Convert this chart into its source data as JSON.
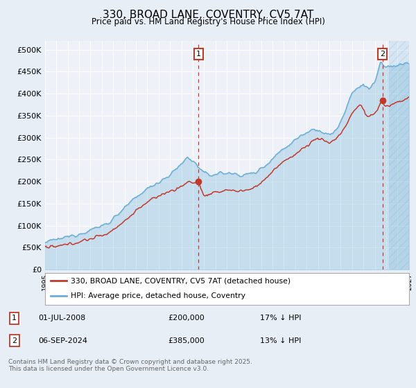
{
  "title": "330, BROAD LANE, COVENTRY, CV5 7AT",
  "subtitle": "Price paid vs. HM Land Registry's House Price Index (HPI)",
  "ylim": [
    0,
    520000
  ],
  "yticks": [
    0,
    50000,
    100000,
    150000,
    200000,
    250000,
    300000,
    350000,
    400000,
    450000,
    500000
  ],
  "ytick_labels": [
    "£0",
    "£50K",
    "£100K",
    "£150K",
    "£200K",
    "£250K",
    "£300K",
    "£350K",
    "£400K",
    "£450K",
    "£500K"
  ],
  "xlim_start": 1995.0,
  "xlim_end": 2027.0,
  "hpi_color": "#6baed6",
  "hpi_fill_alpha": 0.3,
  "price_color": "#c0392b",
  "marker1_date": 2008.5,
  "marker1_price": 200000,
  "marker1_label": "1",
  "marker2_date": 2024.67,
  "marker2_price": 385000,
  "marker2_label": "2",
  "hatch_start": 2025.25,
  "legend_line1": "330, BROAD LANE, COVENTRY, CV5 7AT (detached house)",
  "legend_line2": "HPI: Average price, detached house, Coventry",
  "note1_label": "1",
  "note1_date": "01-JUL-2008",
  "note1_price": "£200,000",
  "note1_pct": "17% ↓ HPI",
  "note2_label": "2",
  "note2_date": "06-SEP-2024",
  "note2_price": "£385,000",
  "note2_pct": "13% ↓ HPI",
  "footer": "Contains HM Land Registry data © Crown copyright and database right 2025.\nThis data is licensed under the Open Government Licence v3.0.",
  "bg_color": "#e8eef5",
  "plot_bg": "#eef2f8",
  "grid_color": "#ffffff"
}
